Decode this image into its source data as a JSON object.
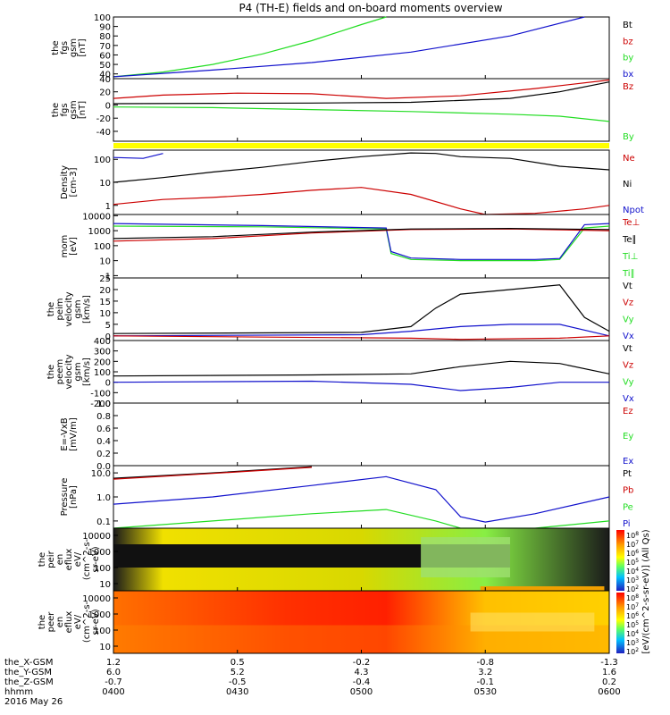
{
  "title": "P4 (TH-E) fields and on-board moments overview",
  "colors": {
    "black": "#000000",
    "red": "#cc0000",
    "green": "#22dd22",
    "blue": "#1111cc",
    "yellow": "#ffff00"
  },
  "footer": {
    "row_labels": [
      "the_X-GSM",
      "the_Y-GSM",
      "the_Z-GSM",
      "hhmm",
      "2016 May 26"
    ],
    "ticks": [
      {
        "x": "1.2",
        "y": "6.0",
        "z": "-0.7",
        "t": "0400"
      },
      {
        "x": "0.5",
        "y": "5.2",
        "z": "-0.5",
        "t": "0430"
      },
      {
        "x": "-0.2",
        "y": "4.3",
        "z": "-0.4",
        "t": "0500"
      },
      {
        "x": "-0.8",
        "y": "3.2",
        "z": "-0.1",
        "t": "0530"
      },
      {
        "x": "-1.3",
        "y": "1.6",
        "z": "0.2",
        "t": "0600"
      }
    ]
  },
  "chart_data": [
    {
      "id": "fgs_mag",
      "type": "line",
      "ylabel": [
        "the",
        "fgs",
        "gsm",
        "[nT]"
      ],
      "ylim": [
        35,
        100
      ],
      "yticks": [
        "100",
        "90",
        "80",
        "70",
        "60",
        "50",
        "40"
      ],
      "legend": [
        {
          "text": "Bt",
          "color": "#000000"
        },
        {
          "text": "bz",
          "color": "#cc0000"
        },
        {
          "text": "by",
          "color": "#22dd22"
        },
        {
          "text": "bx",
          "color": "#1111cc"
        }
      ],
      "series": [
        {
          "name": "by",
          "color": "#22dd22",
          "t": [
            0,
            0.1,
            0.2,
            0.3,
            0.4,
            0.5,
            0.55
          ],
          "values": [
            37,
            42,
            50,
            61,
            75,
            92,
            100
          ]
        },
        {
          "name": "bx",
          "color": "#1111cc",
          "t": [
            0,
            0.2,
            0.4,
            0.6,
            0.8,
            0.95
          ],
          "values": [
            37,
            44,
            52,
            63,
            80,
            100
          ]
        }
      ]
    },
    {
      "id": "fgs_gsm",
      "type": "line",
      "ylabel": [
        "the",
        "fgs",
        "gsm",
        "[nT]"
      ],
      "ylim": [
        -55,
        40
      ],
      "yticks": [
        "40",
        "20",
        "0",
        "-20",
        "-40"
      ],
      "legend": [
        {
          "text": "Bz",
          "color": "#cc0000"
        },
        {
          "text": "By",
          "color": "#22dd22"
        }
      ],
      "series": [
        {
          "name": "Bx",
          "color": "#000000",
          "t": [
            0,
            0.2,
            0.4,
            0.6,
            0.8,
            0.9,
            1
          ],
          "values": [
            2,
            2.5,
            3,
            4,
            10,
            20,
            35
          ]
        },
        {
          "name": "Bz",
          "color": "#cc0000",
          "t": [
            0,
            0.1,
            0.25,
            0.4,
            0.55,
            0.7,
            0.85,
            1
          ],
          "values": [
            10,
            15,
            18,
            17,
            10,
            14,
            25,
            38
          ]
        },
        {
          "name": "By",
          "color": "#22dd22",
          "t": [
            0,
            0.2,
            0.4,
            0.6,
            0.8,
            0.9,
            1
          ],
          "values": [
            -3,
            -4,
            -7,
            -10,
            -14,
            -17,
            -25
          ]
        }
      ]
    },
    {
      "id": "density",
      "type": "line",
      "scale": "log",
      "ylabel": [
        "Density",
        "[cm-3]"
      ],
      "ylim": [
        0.4,
        250
      ],
      "yticks": [
        "100",
        "10",
        "1"
      ],
      "legend": [
        {
          "text": "Ne",
          "color": "#cc0000"
        },
        {
          "text": "Ni",
          "color": "#000000"
        },
        {
          "text": "Npot",
          "color": "#1111cc"
        }
      ],
      "series": [
        {
          "name": "Ni",
          "color": "#000000",
          "t": [
            0,
            0.1,
            0.2,
            0.3,
            0.4,
            0.5,
            0.6,
            0.65,
            0.7,
            0.8,
            0.9,
            1
          ],
          "values": [
            10,
            16,
            28,
            45,
            80,
            130,
            190,
            180,
            130,
            110,
            50,
            35
          ]
        },
        {
          "name": "Ne",
          "color": "#cc0000",
          "t": [
            0,
            0.1,
            0.2,
            0.3,
            0.4,
            0.5,
            0.6,
            0.7,
            0.75,
            0.85,
            0.95,
            1
          ],
          "values": [
            1.1,
            1.8,
            2.2,
            3,
            4.5,
            6,
            3,
            0.7,
            0.4,
            0.45,
            0.7,
            1
          ]
        },
        {
          "name": "Npot",
          "color": "#1111cc",
          "t": [
            0,
            0.06,
            0.1
          ],
          "values": [
            120,
            110,
            180
          ]
        }
      ]
    },
    {
      "id": "temperature",
      "type": "line",
      "scale": "log",
      "ylabel": [
        "mom",
        "[eV]"
      ],
      "ylim": [
        0.7,
        12000
      ],
      "yticks": [
        "10000",
        "1000",
        "100",
        "10",
        "1"
      ],
      "legend": [
        {
          "text": "Te⊥",
          "color": "#cc0000"
        },
        {
          "text": "Te∥",
          "color": "#000000"
        },
        {
          "text": "Ti⊥",
          "color": "#22dd22"
        },
        {
          "text": "Ti∥",
          "color": "#22dd22"
        }
      ],
      "series": [
        {
          "name": "Ti⊥",
          "color": "#22dd22",
          "t": [
            0,
            0.3,
            0.55,
            0.56,
            0.6,
            0.7,
            0.85,
            0.9,
            0.95,
            1
          ],
          "values": [
            2000,
            1800,
            1300,
            30,
            12,
            10,
            10,
            12,
            1500,
            2000
          ]
        },
        {
          "name": "Ti∥",
          "color": "#1111cc",
          "t": [
            0,
            0.3,
            0.55,
            0.56,
            0.6,
            0.7,
            0.85,
            0.9,
            0.95,
            1
          ],
          "values": [
            3000,
            2200,
            1500,
            40,
            15,
            12,
            12,
            14,
            2500,
            3000
          ]
        },
        {
          "name": "Te⊥",
          "color": "#cc0000",
          "t": [
            0,
            0.2,
            0.4,
            0.6,
            0.8,
            1
          ],
          "values": [
            200,
            300,
            700,
            1200,
            1300,
            1000
          ]
        },
        {
          "name": "Te∥",
          "color": "#000000",
          "t": [
            0,
            0.2,
            0.4,
            0.6,
            0.8,
            1
          ],
          "values": [
            300,
            400,
            800,
            1300,
            1400,
            1200
          ]
        }
      ]
    },
    {
      "id": "velocity_ei",
      "type": "line",
      "ylabel": [
        "the",
        "peim",
        "velocity",
        "gsm",
        "[km/s]"
      ],
      "ylim": [
        -2,
        25
      ],
      "yticks": [
        "25",
        "20",
        "15",
        "10",
        "5",
        "0"
      ],
      "legend": [
        {
          "text": "Vt",
          "color": "#000000"
        },
        {
          "text": "Vz",
          "color": "#cc0000"
        },
        {
          "text": "Vy",
          "color": "#22dd22"
        },
        {
          "text": "Vx",
          "color": "#1111cc"
        }
      ],
      "series": [
        {
          "name": "Vt",
          "color": "#000000",
          "t": [
            0,
            0.5,
            0.6,
            0.65,
            0.7,
            0.8,
            0.9,
            0.95,
            1
          ],
          "values": [
            1,
            1.5,
            4,
            12,
            18,
            20,
            22,
            8,
            2
          ]
        },
        {
          "name": "Vx",
          "color": "#1111cc",
          "t": [
            0,
            0.5,
            0.6,
            0.7,
            0.8,
            0.9,
            1
          ],
          "values": [
            0,
            0.5,
            2,
            4,
            5,
            5,
            0
          ]
        },
        {
          "name": "Vz",
          "color": "#cc0000",
          "t": [
            0,
            0.6,
            0.7,
            0.9,
            1
          ],
          "values": [
            0,
            -1,
            -1.5,
            -1,
            0
          ]
        }
      ]
    },
    {
      "id": "velocity_eem",
      "type": "line",
      "ylabel": [
        "the",
        "peem",
        "velocity",
        "gsm",
        "[km/s]"
      ],
      "ylim": [
        -200,
        400
      ],
      "yticks": [
        "400",
        "300",
        "200",
        "100",
        "0",
        "-100",
        "-200"
      ],
      "legend": [
        {
          "text": "Vt",
          "color": "#000000"
        },
        {
          "text": "Vz",
          "color": "#cc0000"
        },
        {
          "text": "Vy",
          "color": "#22dd22"
        },
        {
          "text": "Vx",
          "color": "#1111cc"
        }
      ],
      "series": [
        {
          "name": "Vt",
          "color": "#000000",
          "t": [
            0,
            0.4,
            0.6,
            0.7,
            0.8,
            0.9,
            1
          ],
          "values": [
            60,
            70,
            80,
            150,
            200,
            180,
            80
          ]
        },
        {
          "name": "Vx",
          "color": "#1111cc",
          "t": [
            0,
            0.4,
            0.6,
            0.7,
            0.8,
            0.9,
            1
          ],
          "values": [
            0,
            10,
            -20,
            -80,
            -50,
            0,
            0
          ]
        }
      ]
    },
    {
      "id": "efield",
      "type": "line",
      "ylabel": [
        "E=-VxB",
        "[mV/m]"
      ],
      "ylim": [
        0,
        1
      ],
      "yticks": [
        "1.0",
        "0.8",
        "0.6",
        "0.4",
        "0.2",
        "0.0"
      ],
      "legend": [
        {
          "text": "Ez",
          "color": "#cc0000"
        },
        {
          "text": "Ey",
          "color": "#22dd22"
        },
        {
          "text": "Ex",
          "color": "#1111cc"
        }
      ],
      "series": []
    },
    {
      "id": "pressure",
      "type": "line",
      "scale": "log",
      "ylabel": [
        "Pressure",
        "[nPa]"
      ],
      "ylim": [
        0.05,
        20
      ],
      "yticks": [
        "10.0",
        "1.0",
        "0.1"
      ],
      "legend": [
        {
          "text": "Pt",
          "color": "#000000"
        },
        {
          "text": "Pb",
          "color": "#cc0000"
        },
        {
          "text": "Pe",
          "color": "#22dd22"
        },
        {
          "text": "Pi",
          "color": "#1111cc"
        }
      ],
      "series": [
        {
          "name": "Pt",
          "color": "#000000",
          "t": [
            0,
            0.2,
            0.4
          ],
          "values": [
            6,
            10,
            18
          ]
        },
        {
          "name": "Pb",
          "color": "#cc0000",
          "t": [
            0,
            0.2,
            0.4
          ],
          "values": [
            5.5,
            9.5,
            17
          ]
        },
        {
          "name": "Pi",
          "color": "#1111cc",
          "t": [
            0,
            0.2,
            0.4,
            0.55,
            0.65,
            0.7,
            0.75,
            0.85,
            1
          ],
          "values": [
            0.5,
            1,
            3,
            7,
            2,
            0.15,
            0.09,
            0.2,
            1
          ]
        },
        {
          "name": "Pe",
          "color": "#22dd22",
          "t": [
            0,
            0.2,
            0.4,
            0.55,
            0.65,
            0.7,
            0.75,
            0.85,
            1
          ],
          "values": [
            0.05,
            0.1,
            0.2,
            0.3,
            0.1,
            0.04,
            0.03,
            0.05,
            0.1
          ]
        }
      ]
    },
    {
      "id": "eflux_i",
      "type": "heatmap",
      "ylabel": [
        "the",
        "peir",
        "en",
        "eflux",
        "eV/",
        "(cm^2-s-",
        "sr-eV)"
      ],
      "yticks": [
        "10000",
        "1000",
        "100",
        "10"
      ]
    },
    {
      "id": "eflux_e",
      "type": "heatmap",
      "ylabel": [
        "the",
        "peer",
        "en",
        "eflux",
        "eV/",
        "(cm^2-s-",
        "sr-eV)"
      ],
      "yticks": [
        "10000",
        "1000",
        "100",
        "10"
      ]
    }
  ],
  "colorbar": {
    "label": "[eV/(cm^2-s-sr-eV)] (All Qs)",
    "upper_ticks": [
      "10^8",
      "10^7",
      "10^6",
      "10^5",
      "10^4",
      "10^3",
      "10^2"
    ],
    "lower_ticks": [
      "10^8",
      "10^7",
      "10^6",
      "10^5",
      "10^4",
      "10^3",
      "10^2"
    ]
  }
}
